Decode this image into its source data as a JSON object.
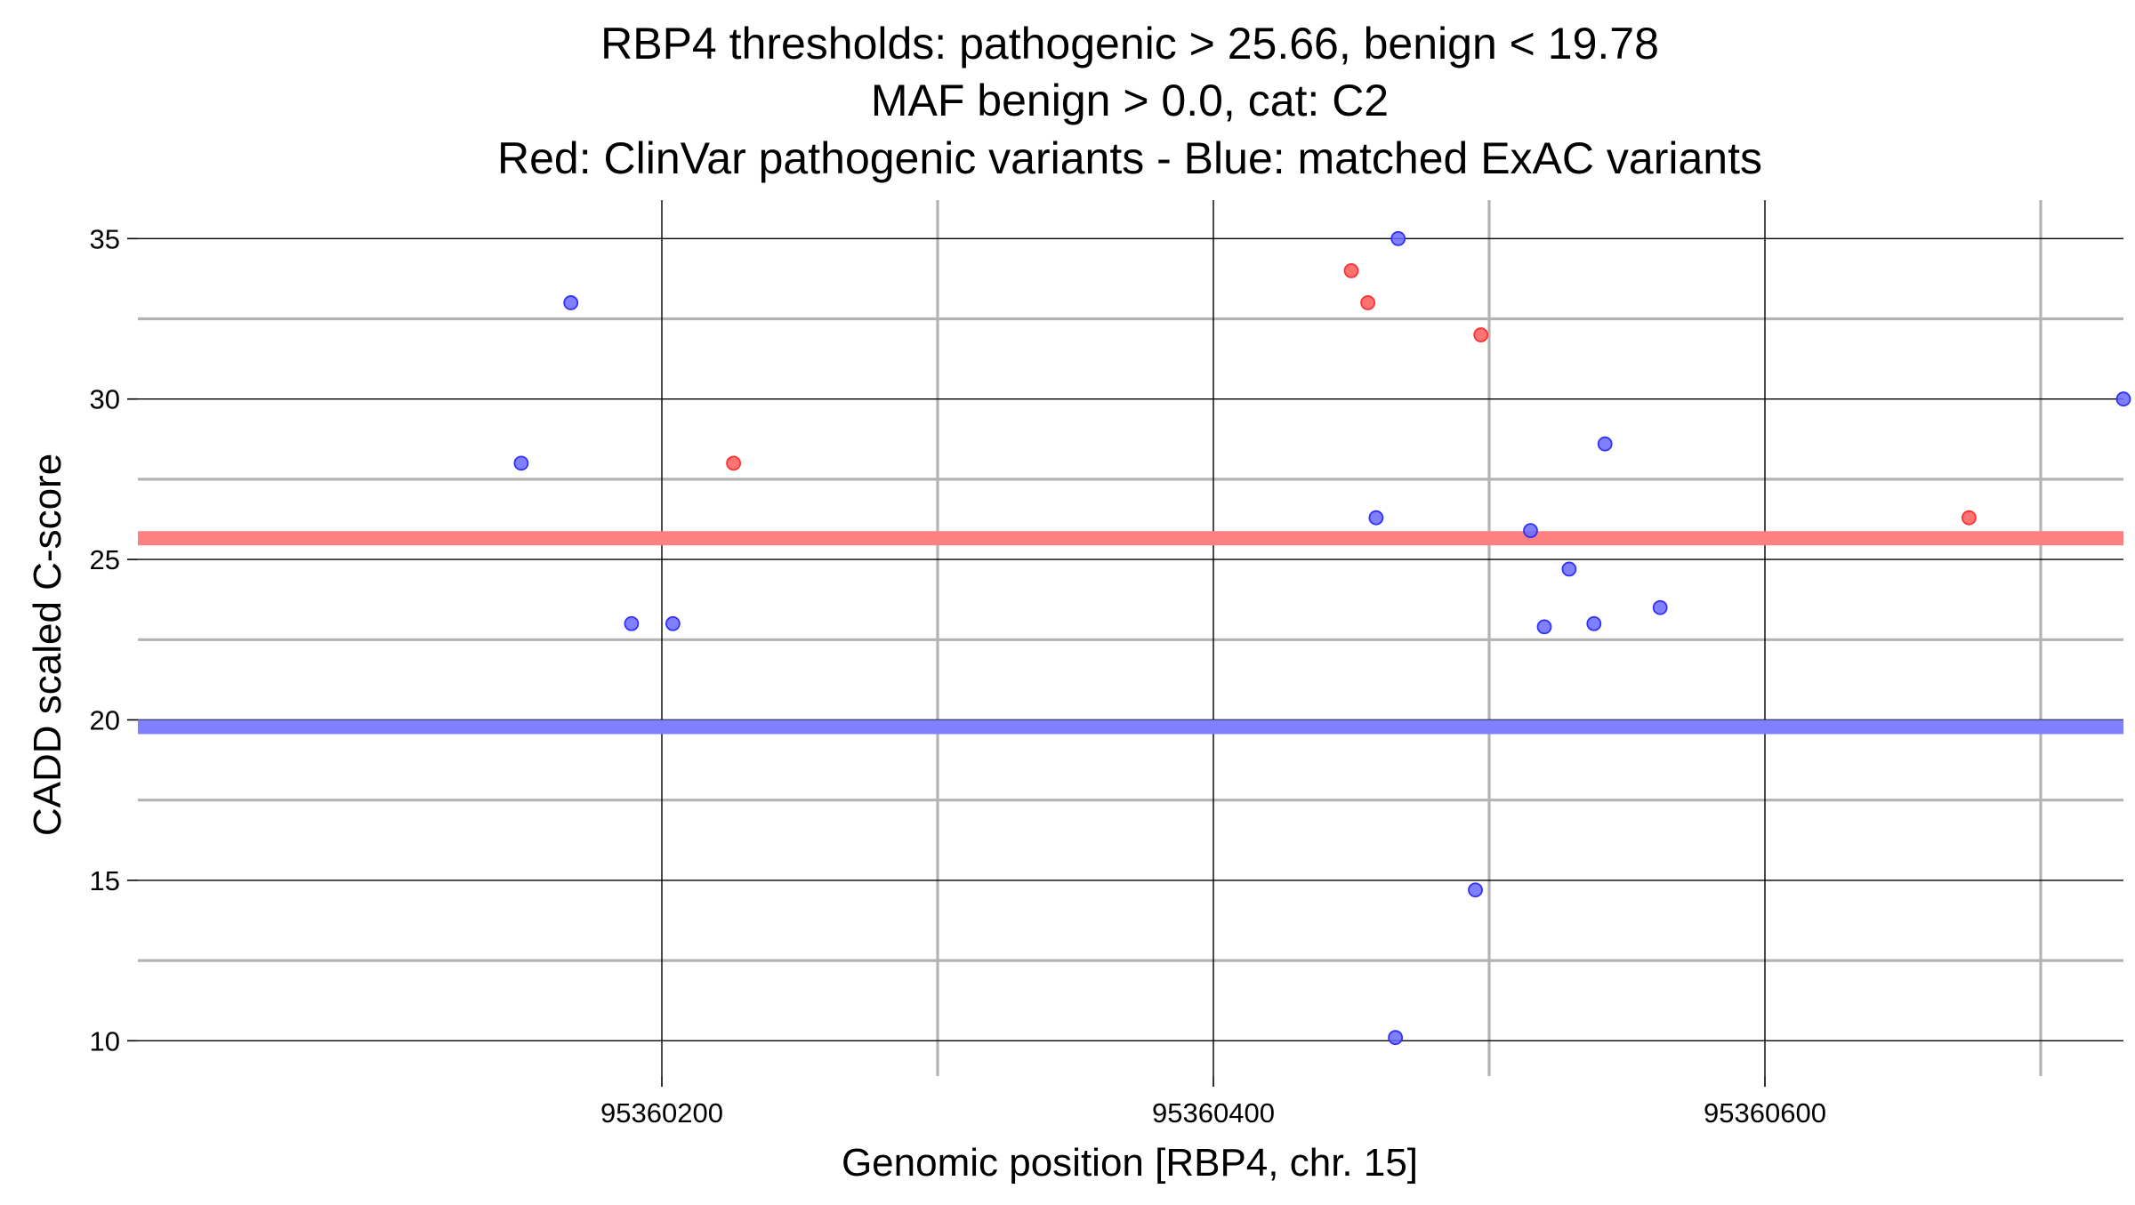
{
  "chart_data": {
    "type": "scatter",
    "title": [
      "RBP4 thresholds: pathogenic > 25.66, benign < 19.78",
      "MAF benign > 0.0, cat: C2",
      "Red: ClinVar pathogenic variants - Blue: matched ExAC variants"
    ],
    "xlabel": "Genomic position [RBP4, chr. 15]",
    "ylabel": "CADD scaled C-score",
    "xlim": [
      95360010,
      95360730
    ],
    "ylim": [
      8.9,
      36.2
    ],
    "x_major_ticks": [
      95360200,
      95360400,
      95360600
    ],
    "x_tick_labels": [
      "95360200",
      "95360400",
      "95360600"
    ],
    "x_minor_ticks": [
      95360300,
      95360500,
      95360700
    ],
    "y_major_ticks": [
      10,
      15,
      20,
      25,
      30,
      35
    ],
    "y_tick_labels": [
      "10",
      "15",
      "20",
      "25",
      "30",
      "35"
    ],
    "y_minor_ticks": [
      12.5,
      17.5,
      22.5,
      27.5,
      32.5
    ],
    "grid": true,
    "thresholds": [
      {
        "label": "pathogenic",
        "value": 25.66,
        "color": "#ff8080"
      },
      {
        "label": "benign",
        "value": 19.78,
        "color": "#8080ff"
      }
    ],
    "series": [
      {
        "color": "#ff5a5a",
        "edge_color": "#ff3030",
        "points": [
          {
            "x": 95360226,
            "y": 28.0
          },
          {
            "x": 95360450,
            "y": 34.0
          },
          {
            "x": 95360456,
            "y": 33.0
          },
          {
            "x": 95360497,
            "y": 32.0
          },
          {
            "x": 95360674,
            "y": 26.3
          }
        ]
      },
      {
        "color": "#6a6aff",
        "edge_color": "#3030ff",
        "points": [
          {
            "x": 95360149,
            "y": 28.0
          },
          {
            "x": 95360167,
            "y": 33.0
          },
          {
            "x": 95360189,
            "y": 23.0
          },
          {
            "x": 95360204,
            "y": 23.0
          },
          {
            "x": 95360459,
            "y": 26.3
          },
          {
            "x": 95360466,
            "y": 10.1
          },
          {
            "x": 95360467,
            "y": 35.0
          },
          {
            "x": 95360495,
            "y": 14.7
          },
          {
            "x": 95360515,
            "y": 25.9
          },
          {
            "x": 95360520,
            "y": 22.9
          },
          {
            "x": 95360529,
            "y": 24.7
          },
          {
            "x": 95360538,
            "y": 23.0
          },
          {
            "x": 95360542,
            "y": 28.6
          },
          {
            "x": 95360562,
            "y": 23.5
          },
          {
            "x": 95360730,
            "y": 30.0
          }
        ]
      }
    ]
  }
}
